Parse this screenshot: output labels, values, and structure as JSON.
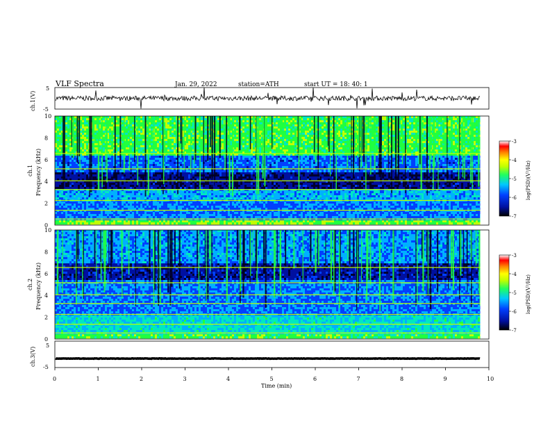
{
  "header": {
    "title": "VLF  Spectra",
    "date": "Jan. 29, 2022",
    "station": "station=ATH",
    "start_time": "start  UT  =   18: 40: 1"
  },
  "colors": {
    "spectrogram_scale": [
      "#000030",
      "#0010a0",
      "#0040ff",
      "#00b0ff",
      "#00e8c0",
      "#20ff40",
      "#c0ff00",
      "#ffff00",
      "#ff8000",
      "#ff0000",
      "#ffffff"
    ]
  },
  "chart_data": [
    {
      "type": "line",
      "name": "ch1-voltage",
      "ylabel": "ch.1(V)",
      "yticks": [
        "5",
        "-5"
      ],
      "ylim": [
        -5,
        5
      ],
      "xlim": [
        0,
        10
      ],
      "baseline": 0,
      "x_end_min": 9.8
    },
    {
      "type": "heatmap",
      "name": "ch1-spectrogram",
      "ylabel": "ch.1\nFrequency (kHz)",
      "yticks": [
        "0",
        "2",
        "4",
        "6",
        "8",
        "10"
      ],
      "ylim": [
        0,
        10
      ],
      "xlim": [
        0,
        10
      ],
      "x_end_min": 9.8,
      "colorbar": {
        "label": "log(PSD)(V²/Hz)",
        "ticks": [
          "-3",
          "-4",
          "-5",
          "-6",
          "-7"
        ],
        "range": [
          -7,
          -3
        ]
      }
    },
    {
      "type": "heatmap",
      "name": "ch2-spectrogram",
      "ylabel": "ch.2\nFrequency (kHz)",
      "yticks": [
        "0",
        "2",
        "4",
        "6",
        "8",
        "10"
      ],
      "ylim": [
        0,
        10
      ],
      "xlim": [
        0,
        10
      ],
      "x_end_min": 9.8,
      "colorbar": {
        "label": "log(PSD)(V²/Hz)",
        "ticks": [
          "-3",
          "-4",
          "-5",
          "-6",
          "-7"
        ],
        "range": [
          -7,
          -3
        ]
      }
    },
    {
      "type": "line",
      "name": "ch3-voltage",
      "ylabel": "ch.3(V)",
      "yticks": [
        "5",
        "-5"
      ],
      "ylim": [
        -5,
        5
      ],
      "xlim": [
        0,
        10
      ],
      "baseline": -1.6,
      "x_end_min": 9.8
    }
  ],
  "x_axis": {
    "label": "Time  (min)",
    "ticks": [
      "0",
      "1",
      "2",
      "3",
      "4",
      "5",
      "6",
      "7",
      "8",
      "9",
      "10"
    ]
  },
  "labels": {
    "ch1_v": "ch.1(V)",
    "ch1_freq_a": "ch.1",
    "ch1_freq_b": "Frequency  (kHz)",
    "ch2_freq_a": "ch.2",
    "ch2_freq_b": "Frequency  (kHz)",
    "ch3_v": "ch.3(V)",
    "cbar1": "log(PSD)(V²/Hz)",
    "cbar2": "log(PSD)(V²/Hz)"
  }
}
